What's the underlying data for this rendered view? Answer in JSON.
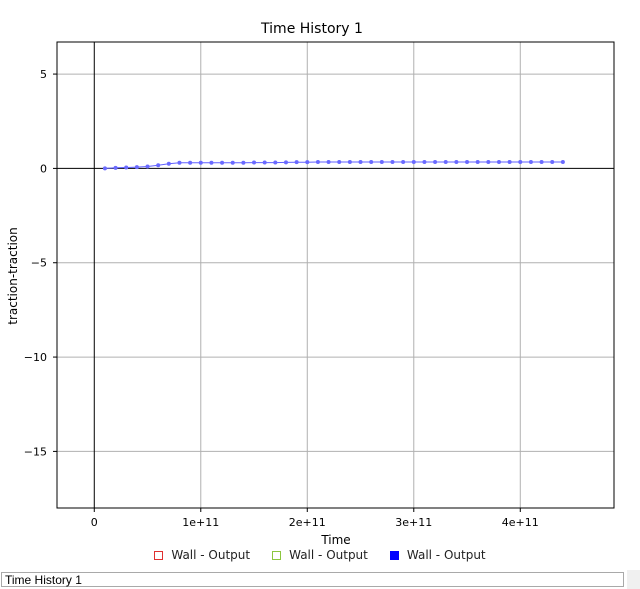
{
  "chart_data": {
    "type": "line",
    "title": "Time History 1",
    "xlabel": "Time",
    "ylabel": "traction-traction",
    "xlim": [
      -35000000000.0,
      488000000000.0
    ],
    "ylim": [
      -18.0,
      6.7
    ],
    "xticks": [
      0,
      100000000000.0,
      200000000000.0,
      300000000000.0,
      400000000000.0
    ],
    "xtick_labels": [
      "0",
      "1e+11",
      "2e+11",
      "3e+11",
      "4e+11"
    ],
    "yticks": [
      5,
      0,
      -5,
      -10,
      -15
    ],
    "ytick_labels": [
      "5",
      "0",
      "−5",
      "−10",
      "−15"
    ],
    "grid": true,
    "series": [
      {
        "name": "Wall - Output",
        "color": "#e03030",
        "marker": "open-square",
        "x": [],
        "y": []
      },
      {
        "name": "Wall - Output",
        "color": "#8cc63f",
        "marker": "open-square",
        "x": [],
        "y": []
      },
      {
        "name": "Wall - Output",
        "color": "#0000ff",
        "marker": "filled-square",
        "x": [
          10000000000.0,
          20000000000.0,
          30000000000.0,
          40000000000.0,
          50000000000.0,
          60000000000.0,
          70000000000.0,
          80000000000.0,
          90000000000.0,
          100000000000.0,
          110000000000.0,
          120000000000.0,
          130000000000.0,
          140000000000.0,
          150000000000.0,
          160000000000.0,
          170000000000.0,
          180000000000.0,
          190000000000.0,
          200000000000.0,
          210000000000.0,
          220000000000.0,
          230000000000.0,
          240000000000.0,
          250000000000.0,
          260000000000.0,
          270000000000.0,
          280000000000.0,
          290000000000.0,
          300000000000.0,
          310000000000.0,
          320000000000.0,
          330000000000.0,
          340000000000.0,
          350000000000.0,
          360000000000.0,
          370000000000.0,
          380000000000.0,
          390000000000.0,
          400000000000.0,
          410000000000.0,
          420000000000.0,
          430000000000.0,
          440000000000.0
        ],
        "y": [
          0.0,
          0.03,
          0.05,
          0.07,
          0.1,
          0.17,
          0.25,
          0.3,
          0.3,
          0.3,
          0.3,
          0.3,
          0.3,
          0.3,
          0.31,
          0.31,
          0.31,
          0.32,
          0.33,
          0.33,
          0.34,
          0.34,
          0.34,
          0.34,
          0.34,
          0.34,
          0.34,
          0.34,
          0.34,
          0.34,
          0.34,
          0.34,
          0.34,
          0.34,
          0.34,
          0.34,
          0.34,
          0.34,
          0.34,
          0.34,
          0.34,
          0.34,
          0.34,
          0.34
        ]
      }
    ],
    "legend_placement": "bottom-center"
  },
  "status_bar": {
    "text": "Time History 1"
  }
}
